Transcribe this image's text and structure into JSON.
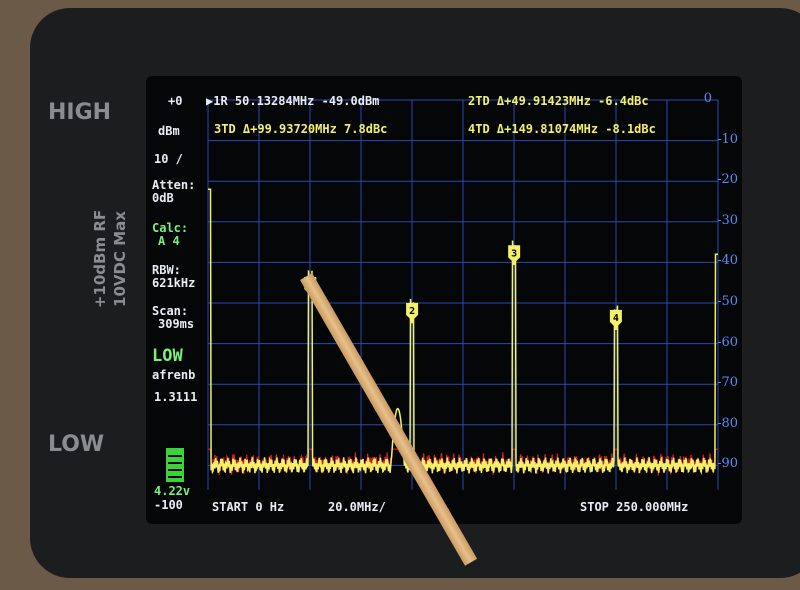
{
  "device": {
    "high_label": "HIGH",
    "low_label": "LOW",
    "rf_rating": "+10dBm RF",
    "dc_rating": "10VDC Max"
  },
  "left_panel": {
    "ref": "+0",
    "unit": "dBm",
    "scale": "10 /",
    "atten_label": "Atten:",
    "atten": "0dB",
    "calc_label": "Calc:",
    "calc": "A 4",
    "rbw_label": "RBW:",
    "rbw": "621kHz",
    "scan_label": "Scan:",
    "scan": "309ms",
    "mode": "LOW",
    "mode_sub": "afrenb",
    "version": "1.3111",
    "battery": "4.22v",
    "bottom": "-100"
  },
  "markers_text": {
    "m1": "▶1R 50.13284MHz -49.0dBm",
    "m2": "2TD Δ+49.91423MHz -6.4dBc",
    "m3": "3TD Δ+99.93720MHz 7.8dBc",
    "m4": "4TD Δ+149.81074MHz -8.1dBc"
  },
  "footer": {
    "start": "START 0 Hz",
    "per_div": "20.0MHz/",
    "stop": "STOP 250.000MHz"
  },
  "colors": {
    "trace": "#f4f06a",
    "grid": "#2a4ab0",
    "stored": "#e02020",
    "battery": "#3ad43a"
  },
  "chart_data": {
    "type": "line",
    "xlabel": "",
    "ylabel": "",
    "xlim": [
      0,
      250
    ],
    "ylim": [
      -100,
      0
    ],
    "y_ticks": [
      "0",
      "-10",
      "-20",
      "-30",
      "-40",
      "-50",
      "-60",
      "-70",
      "-80",
      "-90"
    ],
    "grid": true,
    "noise_floor": -90,
    "markers": [
      {
        "label": "1",
        "x": 50.13,
        "y": -49.0
      },
      {
        "label": "2",
        "x": 100.05,
        "y": -55.4
      },
      {
        "label": "3",
        "x": 150.07,
        "y": -41.2
      },
      {
        "label": "4",
        "x": 199.94,
        "y": -57.1
      }
    ],
    "other_features": [
      {
        "x": 0,
        "y": -22
      },
      {
        "x": 93,
        "y": -76
      },
      {
        "x": 250,
        "y": -38
      }
    ]
  }
}
